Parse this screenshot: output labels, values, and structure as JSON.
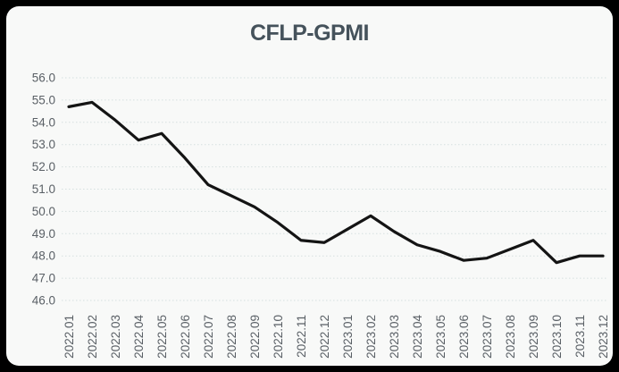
{
  "window": {
    "background_color": "#000000",
    "card_background_color": "#f8f9f8"
  },
  "chart_data": {
    "type": "line",
    "title": "CFLP-GPMI",
    "categories": [
      "2022.01",
      "2022.02",
      "2022.03",
      "2022.04",
      "2022.05",
      "2022.06",
      "2022.07",
      "2022.08",
      "2022.09",
      "2022.10",
      "2022.11",
      "2022.12",
      "2023.01",
      "2023.02",
      "2023.03",
      "2023.04",
      "2023.05",
      "2023.06",
      "2023.07",
      "2023.08",
      "2023.09",
      "2023.10",
      "2023.11",
      "2023.12"
    ],
    "values": [
      54.7,
      54.9,
      54.1,
      53.2,
      53.5,
      52.4,
      51.2,
      50.7,
      50.2,
      49.5,
      48.7,
      48.6,
      49.2,
      49.8,
      49.1,
      48.5,
      48.2,
      47.8,
      47.9,
      48.3,
      48.7,
      47.7,
      48.0,
      48.0
    ],
    "xlabel": "",
    "ylabel": "",
    "ylim": [
      46.0,
      56.0
    ],
    "ytick_step": 1.0,
    "ytick_labels": [
      "56.0",
      "55.0",
      "54.0",
      "53.0",
      "52.0",
      "51.0",
      "50.0",
      "49.0",
      "48.0",
      "47.0",
      "46.0"
    ],
    "grid": "horizontal-dotted",
    "legend": "none",
    "x_label_rotation": -90,
    "colors": {
      "line": "#141414",
      "title": "#45525b",
      "axis_labels": "#5a6066",
      "gridlines": "#d5e0df"
    }
  }
}
